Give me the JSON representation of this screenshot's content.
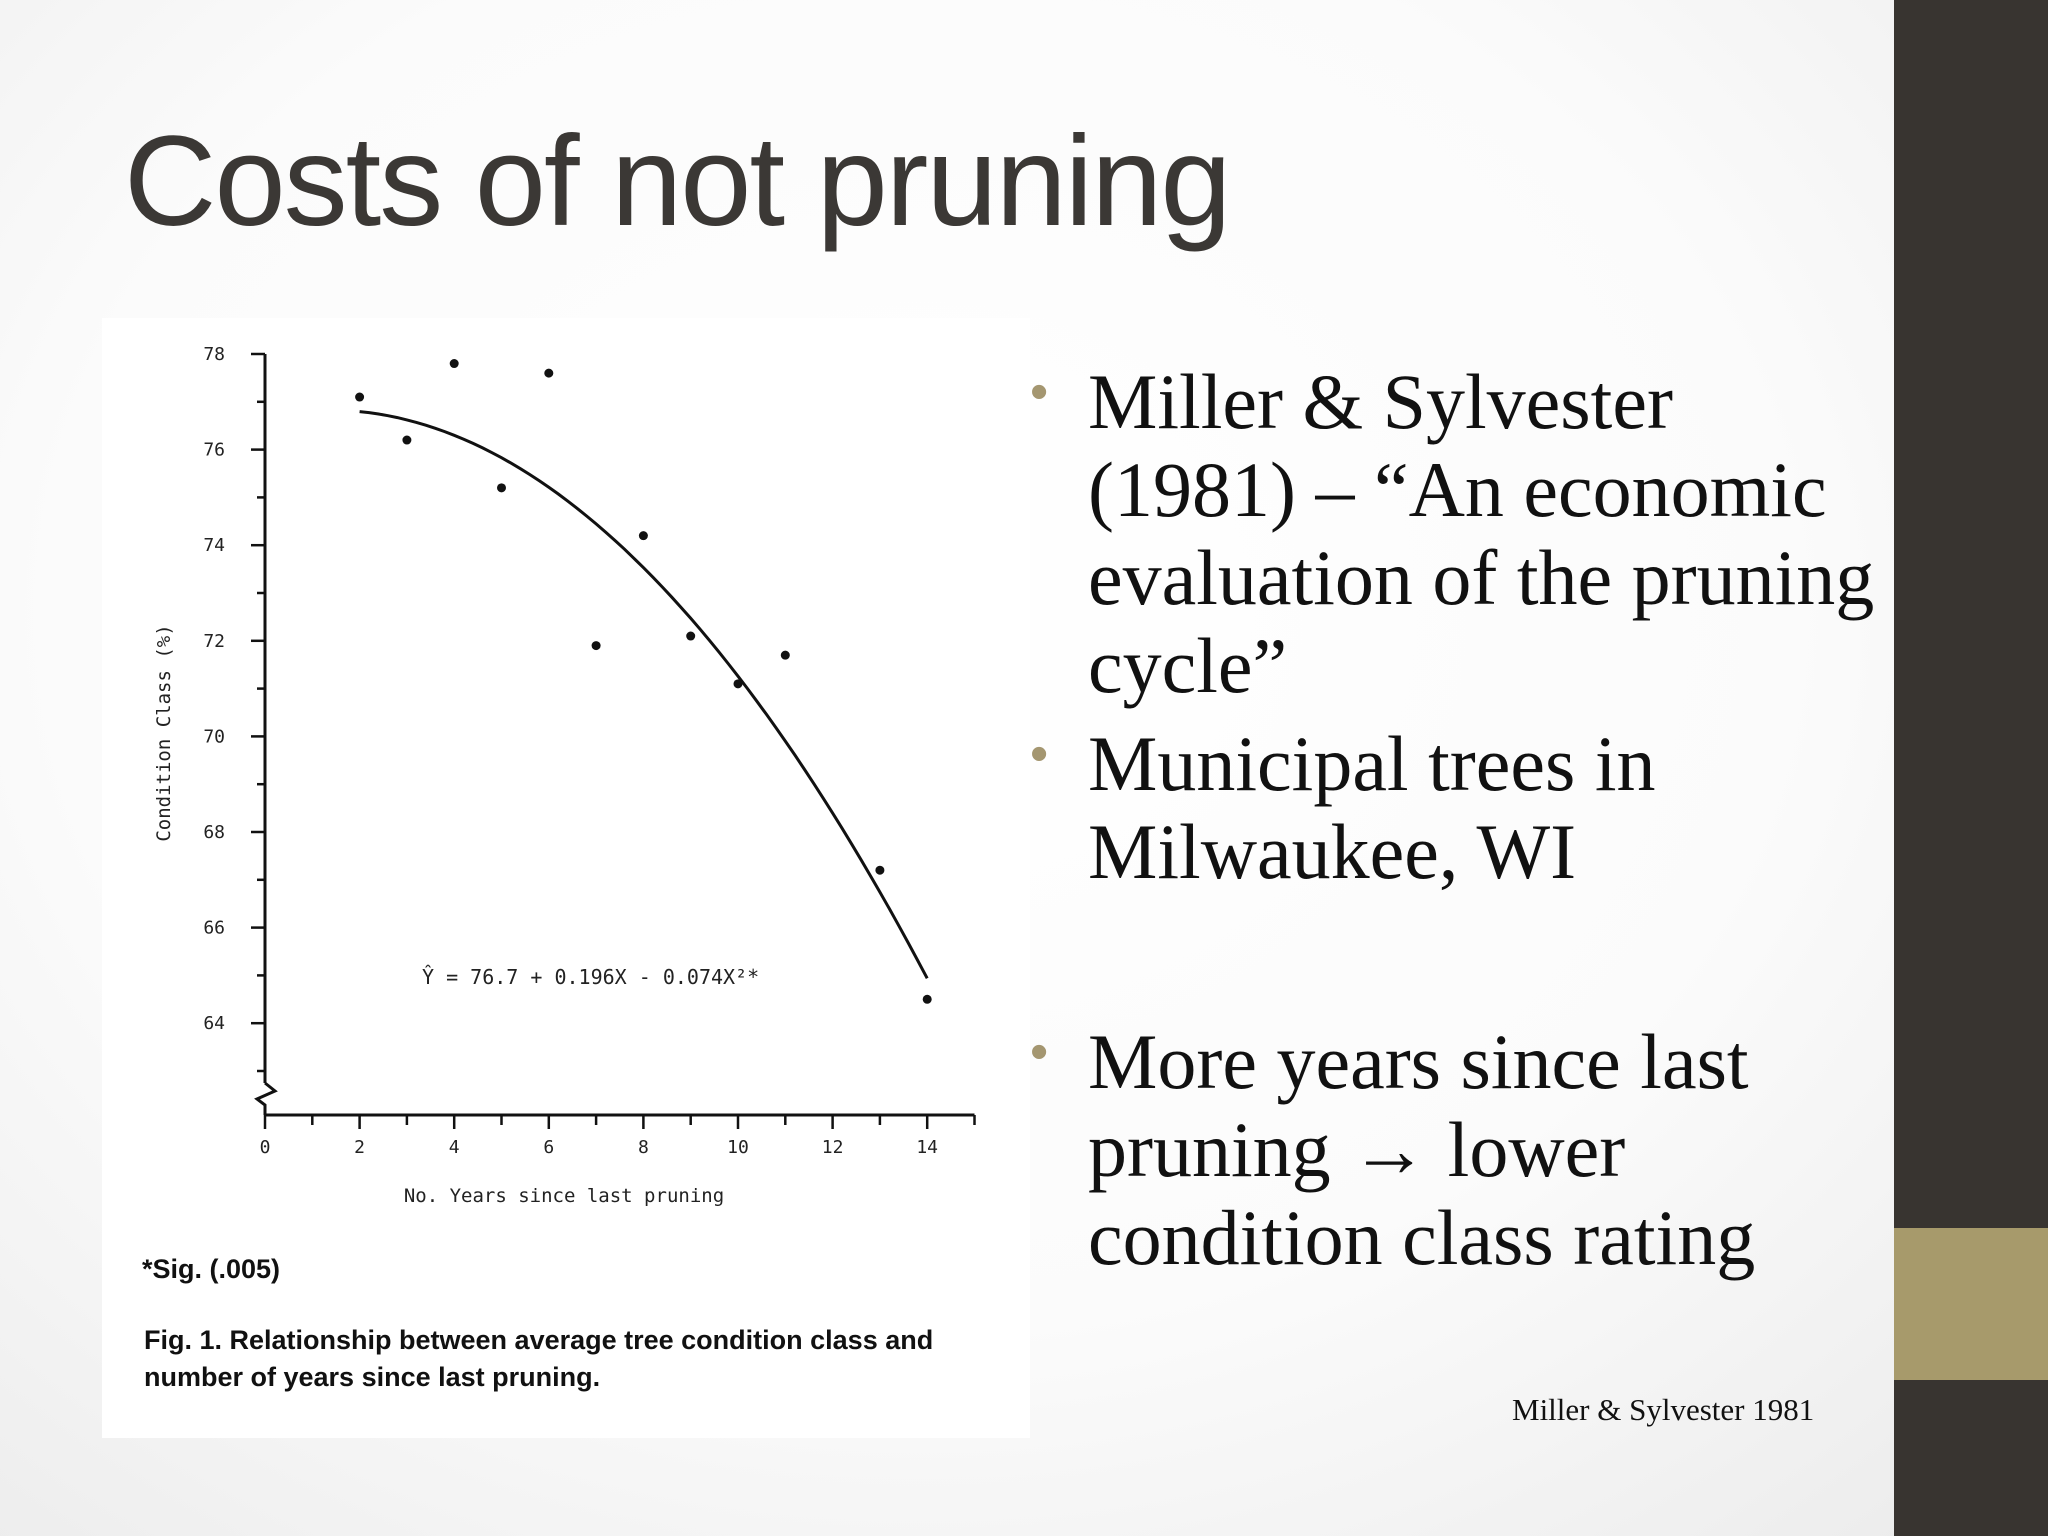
{
  "slide": {
    "title": "Costs of not pruning",
    "citation": "Miller & Sylvester 1981",
    "bullets": [
      {
        "text": "Miller & Sylvester (1981) – “An economic evaluation of the pruning cycle”"
      },
      {
        "text": "Municipal trees in Milwaukee, WI"
      },
      {
        "text": "More years since last pruning → lower condition class rating"
      }
    ],
    "colors": {
      "sidebar": "#383430",
      "accent": "#a79a6b",
      "bullet": "#a49670"
    }
  },
  "figure": {
    "sig_note": "*Sig. (.005)",
    "caption": "Fig. 1. Relationship between average tree condition class and number of years since last pruning."
  },
  "chart_data": {
    "type": "scatter",
    "title": "",
    "xlabel": "No. Years since last pruning",
    "ylabel": "Condition Class (%)",
    "xlim": [
      0,
      15
    ],
    "ylim": [
      62,
      78
    ],
    "x_ticks": [
      0,
      2,
      4,
      6,
      8,
      10,
      12,
      14
    ],
    "y_ticks": [
      64,
      66,
      68,
      70,
      72,
      74,
      76,
      78
    ],
    "grid": false,
    "axis_break": "y",
    "points": [
      {
        "x": 2,
        "y": 77.1
      },
      {
        "x": 3,
        "y": 76.2
      },
      {
        "x": 4,
        "y": 77.8
      },
      {
        "x": 5,
        "y": 75.2
      },
      {
        "x": 6,
        "y": 77.6
      },
      {
        "x": 7,
        "y": 71.9
      },
      {
        "x": 8,
        "y": 74.2
      },
      {
        "x": 9,
        "y": 72.1
      },
      {
        "x": 10,
        "y": 71.1
      },
      {
        "x": 11,
        "y": 71.7
      },
      {
        "x": 13,
        "y": 67.2
      },
      {
        "x": 14,
        "y": 64.5
      }
    ],
    "fit": {
      "label": "Ŷ = 76.7 + 0.196X - 0.074X²*",
      "intercept": 76.7,
      "linear": 0.196,
      "quadratic": -0.074,
      "x_range": [
        2,
        14
      ]
    }
  }
}
